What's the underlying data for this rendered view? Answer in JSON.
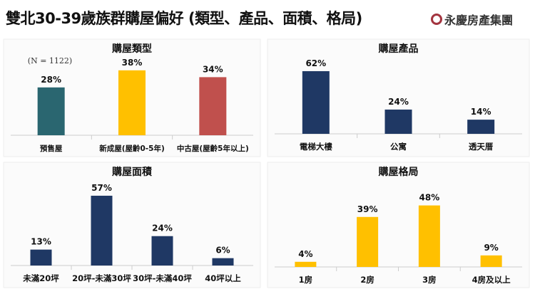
{
  "title": "雙北30-39歲族群購屋偏好 (類型、產品、面積、格局)",
  "logo_text": "永慶房產集團",
  "chart_data": [
    {
      "type": "bar",
      "title": "購屋類型",
      "annotation": "(N = 1122)",
      "categories": [
        "預售屋",
        "新成屋(屋齡0-5年)",
        "中古屋(屋齡5年以上)"
      ],
      "values": [
        28,
        38,
        34
      ],
      "labels": [
        "28%",
        "38%",
        "34%"
      ],
      "colors": [
        "#2a6670",
        "#ffc000",
        "#c0504d"
      ]
    },
    {
      "type": "bar",
      "title": "購屋產品",
      "categories": [
        "電梯大樓",
        "公寓",
        "透天厝"
      ],
      "values": [
        62,
        24,
        14
      ],
      "labels": [
        "62%",
        "24%",
        "14%"
      ],
      "colors": [
        "#1f3864",
        "#1f3864",
        "#1f3864"
      ]
    },
    {
      "type": "bar",
      "title": "購屋面積",
      "categories": [
        "未滿20坪",
        "20坪-未滿30坪",
        "30坪-未滿40坪",
        "40坪以上"
      ],
      "values": [
        13,
        57,
        24,
        6
      ],
      "labels": [
        "13%",
        "57%",
        "24%",
        "6%"
      ],
      "colors": [
        "#1f3864",
        "#1f3864",
        "#1f3864",
        "#1f3864"
      ]
    },
    {
      "type": "bar",
      "title": "購屋格局",
      "categories": [
        "1房",
        "2房",
        "3房",
        "4房及以上"
      ],
      "values": [
        4,
        39,
        48,
        9
      ],
      "labels": [
        "4%",
        "39%",
        "48%",
        "9%"
      ],
      "colors": [
        "#ffc000",
        "#ffc000",
        "#ffc000",
        "#ffc000"
      ]
    }
  ]
}
